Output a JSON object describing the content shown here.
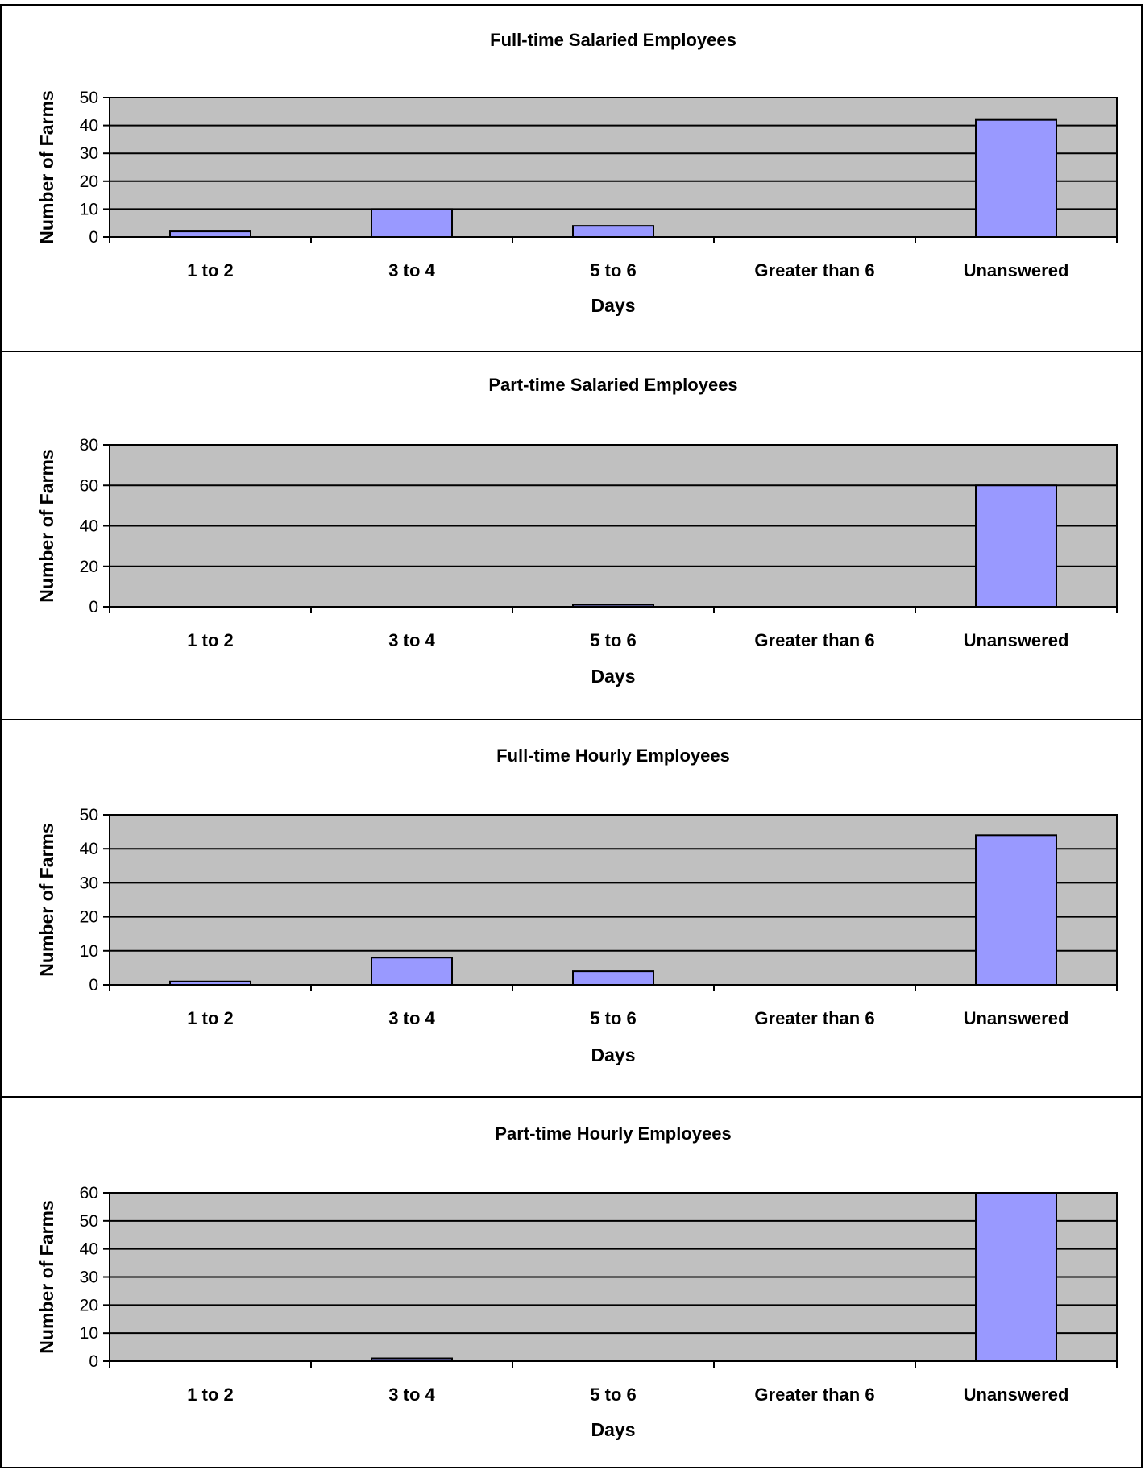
{
  "page_header": "",
  "chart_data": [
    {
      "type": "bar",
      "title": "Full-time Salaried Employees",
      "xlabel": "Days",
      "ylabel": "Number of Farms",
      "categories": [
        "1 to 2",
        "3 to 4",
        "5 to 6",
        "Greater than 6",
        "Unanswered"
      ],
      "values": [
        2,
        10,
        4,
        0,
        42
      ],
      "ylim": [
        0,
        50
      ],
      "yticks": [
        0,
        10,
        20,
        30,
        40,
        50
      ],
      "grid": true,
      "legend": "none",
      "colors": {
        "bar": "#9999ff",
        "plot_bg": "#c0c0c0"
      }
    },
    {
      "type": "bar",
      "title": "Part-time Salaried Employees",
      "xlabel": "Days",
      "ylabel": "Number of Farms",
      "categories": [
        "1 to 2",
        "3 to 4",
        "5 to 6",
        "Greater than 6",
        "Unanswered"
      ],
      "values": [
        0,
        0,
        1,
        0,
        60
      ],
      "ylim": [
        0,
        80
      ],
      "yticks": [
        0,
        20,
        40,
        60,
        80
      ],
      "grid": true,
      "legend": "none",
      "colors": {
        "bar": "#9999ff",
        "plot_bg": "#c0c0c0"
      }
    },
    {
      "type": "bar",
      "title": "Full-time Hourly Employees",
      "xlabel": "Days",
      "ylabel": "Number of Farms",
      "categories": [
        "1 to 2",
        "3 to 4",
        "5 to 6",
        "Greater than 6",
        "Unanswered"
      ],
      "values": [
        1,
        8,
        4,
        0,
        44
      ],
      "ylim": [
        0,
        50
      ],
      "yticks": [
        0,
        10,
        20,
        30,
        40,
        50
      ],
      "grid": true,
      "legend": "none",
      "colors": {
        "bar": "#9999ff",
        "plot_bg": "#c0c0c0"
      }
    },
    {
      "type": "bar",
      "title": "Part-time Hourly Employees",
      "xlabel": "Days",
      "ylabel": "Number of Farms",
      "categories": [
        "1 to 2",
        "3 to 4",
        "5 to 6",
        "Greater than 6",
        "Unanswered"
      ],
      "values": [
        0,
        1,
        0,
        0,
        60
      ],
      "ylim": [
        0,
        60
      ],
      "yticks": [
        0,
        10,
        20,
        30,
        40,
        50,
        60
      ],
      "grid": true,
      "legend": "none",
      "colors": {
        "bar": "#9999ff",
        "plot_bg": "#c0c0c0"
      }
    }
  ]
}
